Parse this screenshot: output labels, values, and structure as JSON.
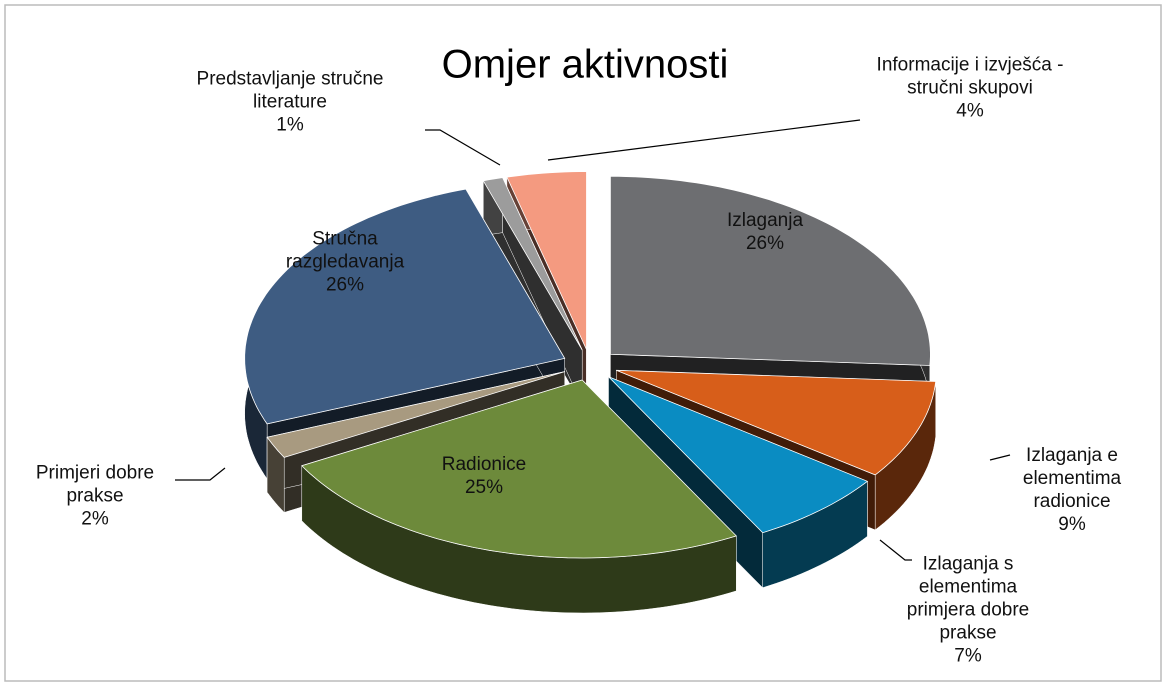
{
  "chart_data": {
    "type": "pie3d",
    "title": "Omjer aktivnosti",
    "categories": [
      "Izlaganja",
      "Izlaganja e elementima radionice",
      "Izlaganja s elementima primjera dobre prakse",
      "Radionice",
      "Primjeri dobre prakse",
      "Stručna razgledavanja",
      "Predstavljanje stručne literature",
      "Informacije i izvješća - stručni skupovi"
    ],
    "values": [
      26,
      9,
      7,
      25,
      2,
      26,
      1,
      4
    ],
    "value_labels": [
      "26%",
      "9%",
      "7%",
      "25%",
      "2%",
      "26%",
      "1%",
      "4%"
    ],
    "colors": [
      "#6d6e71",
      "#d75e1a",
      "#0a8cc2",
      "#6d8a3b",
      "#a89a80",
      "#3e5c82",
      "#9c9c9c",
      "#f49a80"
    ]
  }
}
